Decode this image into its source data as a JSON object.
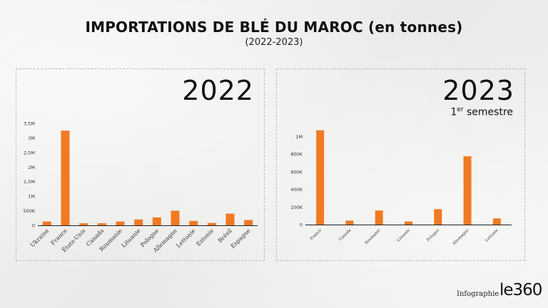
{
  "header": {
    "title": "IMPORTATIONS DE BLÉ DU MAROC (en tonnes)",
    "subtitle": "(2022-2023)"
  },
  "footer": {
    "label": "Infographie",
    "logo": "le360"
  },
  "colors": {
    "bar": "#f07a23",
    "axis": "#222222"
  },
  "chart_data": [
    {
      "type": "bar",
      "title": "2022",
      "categories": [
        "Ukraine",
        "France",
        "États-Unis",
        "Canada",
        "Roumanie",
        "Lituanie",
        "Pologne",
        "Allemagne",
        "Lettonie",
        "Estonie",
        "Brésil",
        "Espagne"
      ],
      "values": [
        130000,
        3250000,
        70000,
        70000,
        130000,
        200000,
        270000,
        500000,
        150000,
        80000,
        400000,
        180000
      ],
      "ylim": [
        0,
        3500000
      ],
      "yticks": [
        0,
        500000,
        1000000,
        1500000,
        2000000,
        2500000,
        3000000,
        3500000
      ],
      "ytick_labels": [
        "0",
        "500K",
        "1M",
        "1,5M",
        "2M",
        "2,5M",
        "3M",
        "3,5M"
      ],
      "xlabel": "",
      "ylabel": ""
    },
    {
      "type": "bar",
      "title": "2023",
      "subtitle_sup": "er",
      "subtitle_pre": "1",
      "subtitle_post": " semestre",
      "categories": [
        "France",
        "Canada",
        "Roumanie",
        "Lituanie",
        "Pologne",
        "Allemagne",
        "Lettonie"
      ],
      "values": [
        1070000,
        45000,
        160000,
        35000,
        175000,
        775000,
        70000
      ],
      "ylim": [
        0,
        1100000
      ],
      "yticks": [
        0,
        200000,
        400000,
        600000,
        800000,
        1000000
      ],
      "ytick_labels": [
        "0",
        "200K",
        "400K",
        "600K",
        "800K",
        "1M"
      ],
      "xlabel": "",
      "ylabel": ""
    }
  ]
}
